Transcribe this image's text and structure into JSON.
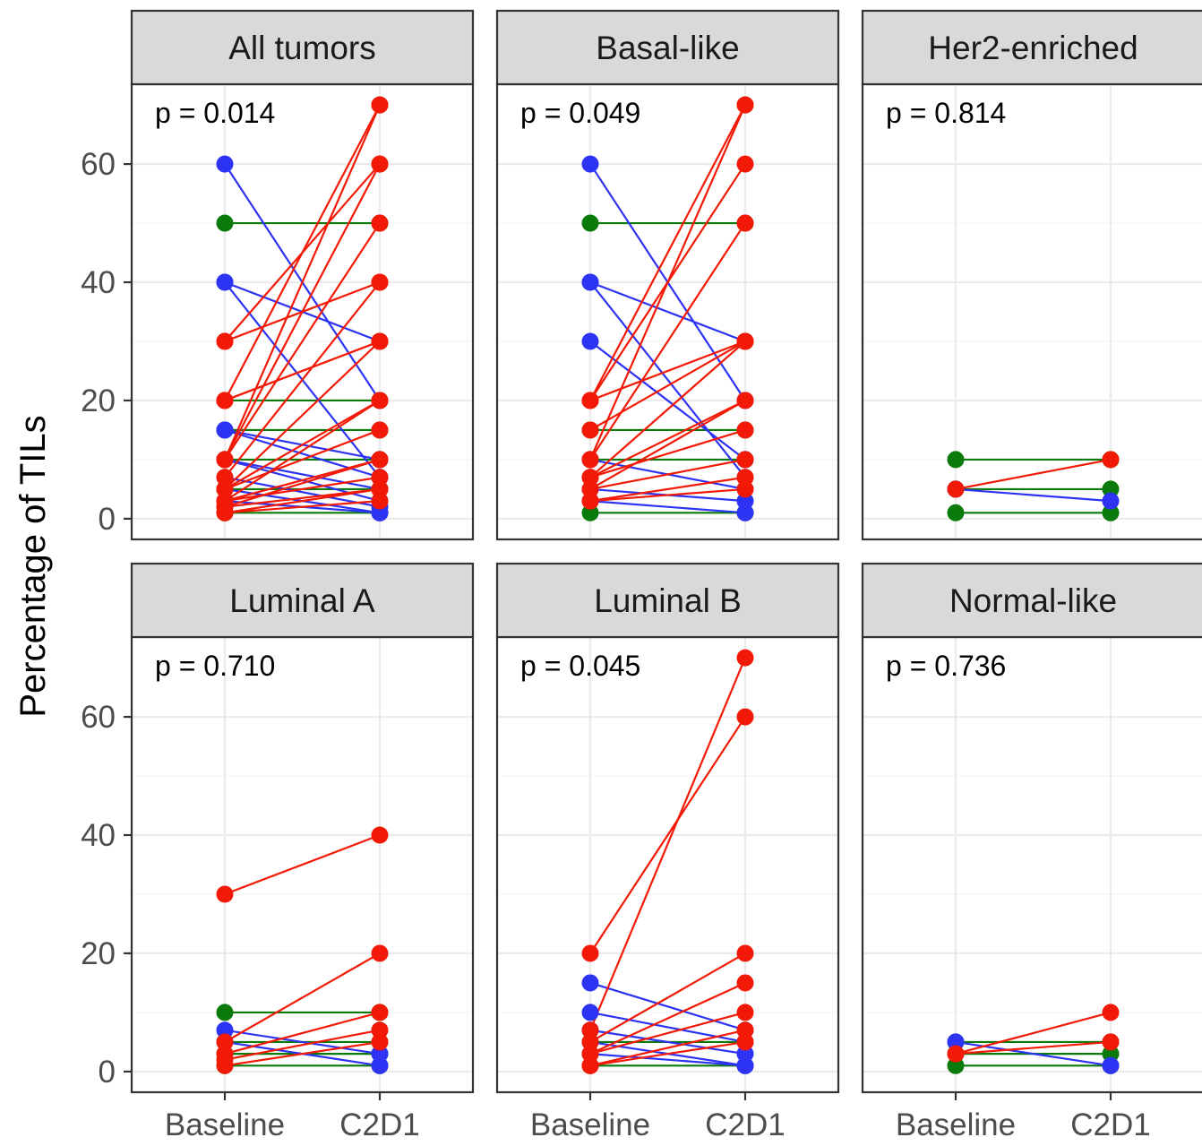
{
  "chart_data": {
    "type": "line",
    "ylabel": "Percentage of TILs",
    "xlabel": "",
    "categories": [
      "Baseline",
      "C2D1"
    ],
    "y_ticks": [
      0,
      20,
      40,
      60
    ],
    "ylim": [
      -3.5,
      73.5
    ],
    "grid": true,
    "legend": "none",
    "colors": {
      "increase": "#f21a06",
      "decrease": "#2d33f2",
      "unchanged": "#0a7a0a"
    },
    "panels": [
      {
        "title": "All tumors",
        "p_label": "p = 0.014",
        "pairs": [
          [
            60,
            20
          ],
          [
            40,
            30
          ],
          [
            40,
            7
          ],
          [
            15,
            7
          ],
          [
            15,
            10
          ],
          [
            10,
            5
          ],
          [
            10,
            3
          ],
          [
            7,
            2
          ],
          [
            5,
            1
          ],
          [
            3,
            1
          ],
          [
            50,
            50
          ],
          [
            20,
            20
          ],
          [
            15,
            15
          ],
          [
            10,
            10
          ],
          [
            5,
            5
          ],
          [
            1,
            1
          ],
          [
            30,
            60
          ],
          [
            20,
            70
          ],
          [
            20,
            30
          ],
          [
            10,
            70
          ],
          [
            10,
            60
          ],
          [
            10,
            50
          ],
          [
            7,
            40
          ],
          [
            5,
            30
          ],
          [
            5,
            20
          ],
          [
            5,
            15
          ],
          [
            3,
            20
          ],
          [
            3,
            10
          ],
          [
            2,
            10
          ],
          [
            1,
            5
          ],
          [
            30,
            40
          ],
          [
            20,
            30
          ],
          [
            3,
            7
          ],
          [
            2,
            5
          ],
          [
            1,
            3
          ]
        ]
      },
      {
        "title": "Basal-like",
        "p_label": "p = 0.049",
        "pairs": [
          [
            60,
            20
          ],
          [
            40,
            30
          ],
          [
            40,
            7
          ],
          [
            30,
            10
          ],
          [
            10,
            5
          ],
          [
            7,
            15
          ],
          [
            5,
            3
          ],
          [
            3,
            1
          ],
          [
            50,
            50
          ],
          [
            15,
            15
          ],
          [
            10,
            10
          ],
          [
            1,
            1
          ],
          [
            20,
            70
          ],
          [
            20,
            60
          ],
          [
            15,
            30
          ],
          [
            10,
            70
          ],
          [
            10,
            50
          ],
          [
            7,
            30
          ],
          [
            7,
            20
          ],
          [
            5,
            20
          ],
          [
            5,
            10
          ],
          [
            3,
            7
          ],
          [
            3,
            5
          ],
          [
            20,
            30
          ]
        ]
      },
      {
        "title": "Her2-enriched",
        "p_label": "p = 0.814",
        "pairs": [
          [
            10,
            10
          ],
          [
            5,
            5
          ],
          [
            1,
            1
          ],
          [
            5,
            3
          ],
          [
            5,
            10
          ]
        ]
      },
      {
        "title": "Luminal A",
        "p_label": "p = 0.710",
        "pairs": [
          [
            10,
            10
          ],
          [
            5,
            5
          ],
          [
            3,
            3
          ],
          [
            1,
            1
          ],
          [
            7,
            3
          ],
          [
            5,
            1
          ],
          [
            30,
            40
          ],
          [
            5,
            20
          ],
          [
            3,
            10
          ],
          [
            2,
            7
          ],
          [
            1,
            5
          ]
        ]
      },
      {
        "title": "Luminal B",
        "p_label": "p = 0.045",
        "pairs": [
          [
            15,
            7
          ],
          [
            10,
            5
          ],
          [
            7,
            3
          ],
          [
            5,
            1
          ],
          [
            3,
            1
          ],
          [
            5,
            5
          ],
          [
            1,
            1
          ],
          [
            20,
            60
          ],
          [
            7,
            70
          ],
          [
            5,
            20
          ],
          [
            3,
            15
          ],
          [
            3,
            10
          ],
          [
            1,
            7
          ],
          [
            1,
            5
          ]
        ]
      },
      {
        "title": "Normal-like",
        "p_label": "p = 0.736",
        "pairs": [
          [
            5,
            5
          ],
          [
            1,
            1
          ],
          [
            5,
            1
          ],
          [
            3,
            3
          ],
          [
            3,
            10
          ],
          [
            3,
            5
          ]
        ]
      }
    ]
  }
}
